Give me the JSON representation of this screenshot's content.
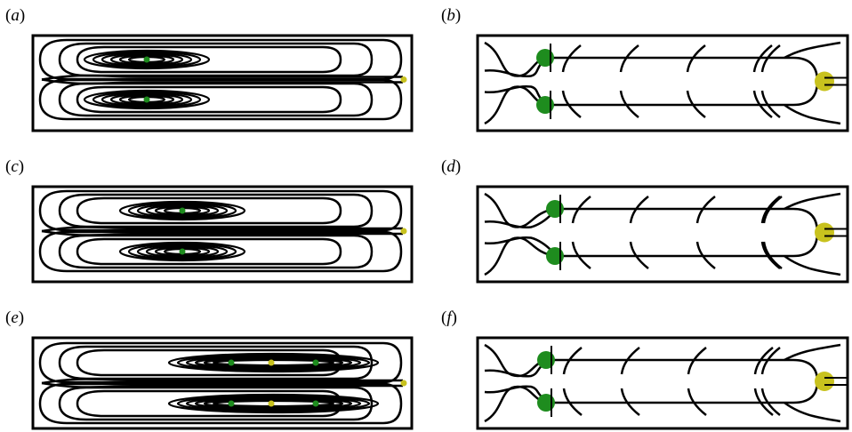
{
  "panels": [
    {
      "id": "a",
      "label_open": "(",
      "letter": "a",
      "label_close": ")",
      "type": "streamlines",
      "green_points": 2,
      "yellow_points": 1
    },
    {
      "id": "b",
      "label_open": "(",
      "letter": "b",
      "label_close": ")",
      "type": "topology",
      "green_points": 2,
      "yellow_points": 1
    },
    {
      "id": "c",
      "label_open": "(",
      "letter": "c",
      "label_close": ")",
      "type": "streamlines",
      "green_points": 2,
      "yellow_points": 1
    },
    {
      "id": "d",
      "label_open": "(",
      "letter": "d",
      "label_close": ")",
      "type": "topology",
      "green_points": 2,
      "yellow_points": 1
    },
    {
      "id": "e",
      "label_open": "(",
      "letter": "e",
      "label_close": ")",
      "type": "streamlines",
      "green_points": 4,
      "yellow_points": 3
    },
    {
      "id": "f",
      "label_open": "(",
      "letter": "f",
      "label_close": ")",
      "type": "topology",
      "green_points": 2,
      "yellow_points": 1
    }
  ],
  "colors": {
    "stroke": "#000000",
    "green": "#1e8c1e",
    "yellow": "#c8c21e"
  }
}
